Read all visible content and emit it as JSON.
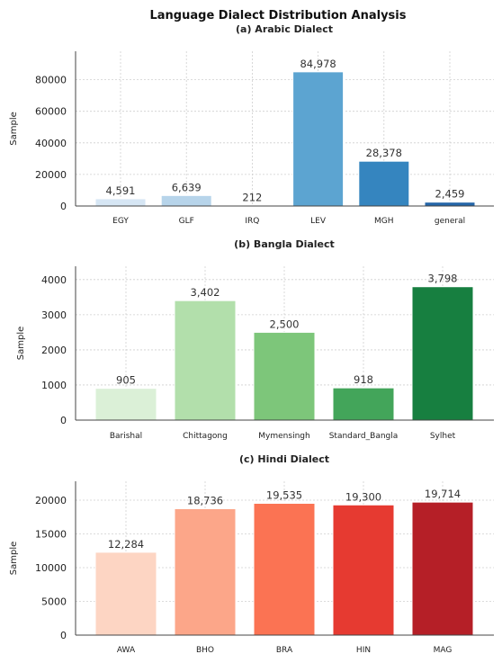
{
  "suptitle": "Language Dialect Distribution Analysis",
  "chart_data": [
    {
      "type": "bar",
      "title": "(a) Arabic Dialect",
      "ylabel": "Sample",
      "xlabel": "",
      "categories": [
        "EGY",
        "GLF",
        "IRQ",
        "LEV",
        "MGH",
        "general"
      ],
      "values": [
        4591,
        6639,
        212,
        84978,
        28378,
        2459
      ],
      "value_labels": [
        "4,591",
        "6,639",
        "212",
        "84,978",
        "28,378",
        "2,459"
      ],
      "colors": [
        "#d6e6f4",
        "#b7d4ea",
        "#9cc6e1",
        "#5ca4d1",
        "#3585bf",
        "#2566a8"
      ],
      "ylim": [
        0,
        98000
      ],
      "yticks": [
        0,
        20000,
        40000,
        60000,
        80000
      ],
      "ytick_labels": [
        "0",
        "20000",
        "40000",
        "60000",
        "80000"
      ],
      "grid": true
    },
    {
      "type": "bar",
      "title": "(b) Bangla Dialect",
      "ylabel": "Sample",
      "xlabel": "",
      "categories": [
        "Barishal",
        "Chittagong",
        "Mymensingh",
        "Standard_Bangla",
        "Sylhet"
      ],
      "values": [
        905,
        3402,
        2500,
        918,
        3798
      ],
      "value_labels": [
        "905",
        "3,402",
        "2,500",
        "918",
        "3,798"
      ],
      "colors": [
        "#dbf0d7",
        "#b2dfab",
        "#7dc67a",
        "#43a55a",
        "#177f40"
      ],
      "ylim": [
        0,
        4380
      ],
      "yticks": [
        0,
        1000,
        2000,
        3000,
        4000
      ],
      "ytick_labels": [
        "0",
        "1000",
        "2000",
        "3000",
        "4000"
      ],
      "grid": true
    },
    {
      "type": "bar",
      "title": "(c) Hindi Dialect",
      "ylabel": "Sample",
      "xlabel": "",
      "categories": [
        "AWA",
        "BHO",
        "BRA",
        "HIN",
        "MAG"
      ],
      "values": [
        12284,
        18736,
        19535,
        19300,
        19714
      ],
      "value_labels": [
        "12,284",
        "18,736",
        "19,535",
        "19,300",
        "19,714"
      ],
      "colors": [
        "#fdd5c3",
        "#fca689",
        "#fb7353",
        "#e63a31",
        "#b51f27"
      ],
      "ylim": [
        0,
        22800
      ],
      "yticks": [
        0,
        5000,
        10000,
        15000,
        20000
      ],
      "ytick_labels": [
        "0",
        "5000",
        "10000",
        "15000",
        "20000"
      ],
      "grid": true
    }
  ]
}
